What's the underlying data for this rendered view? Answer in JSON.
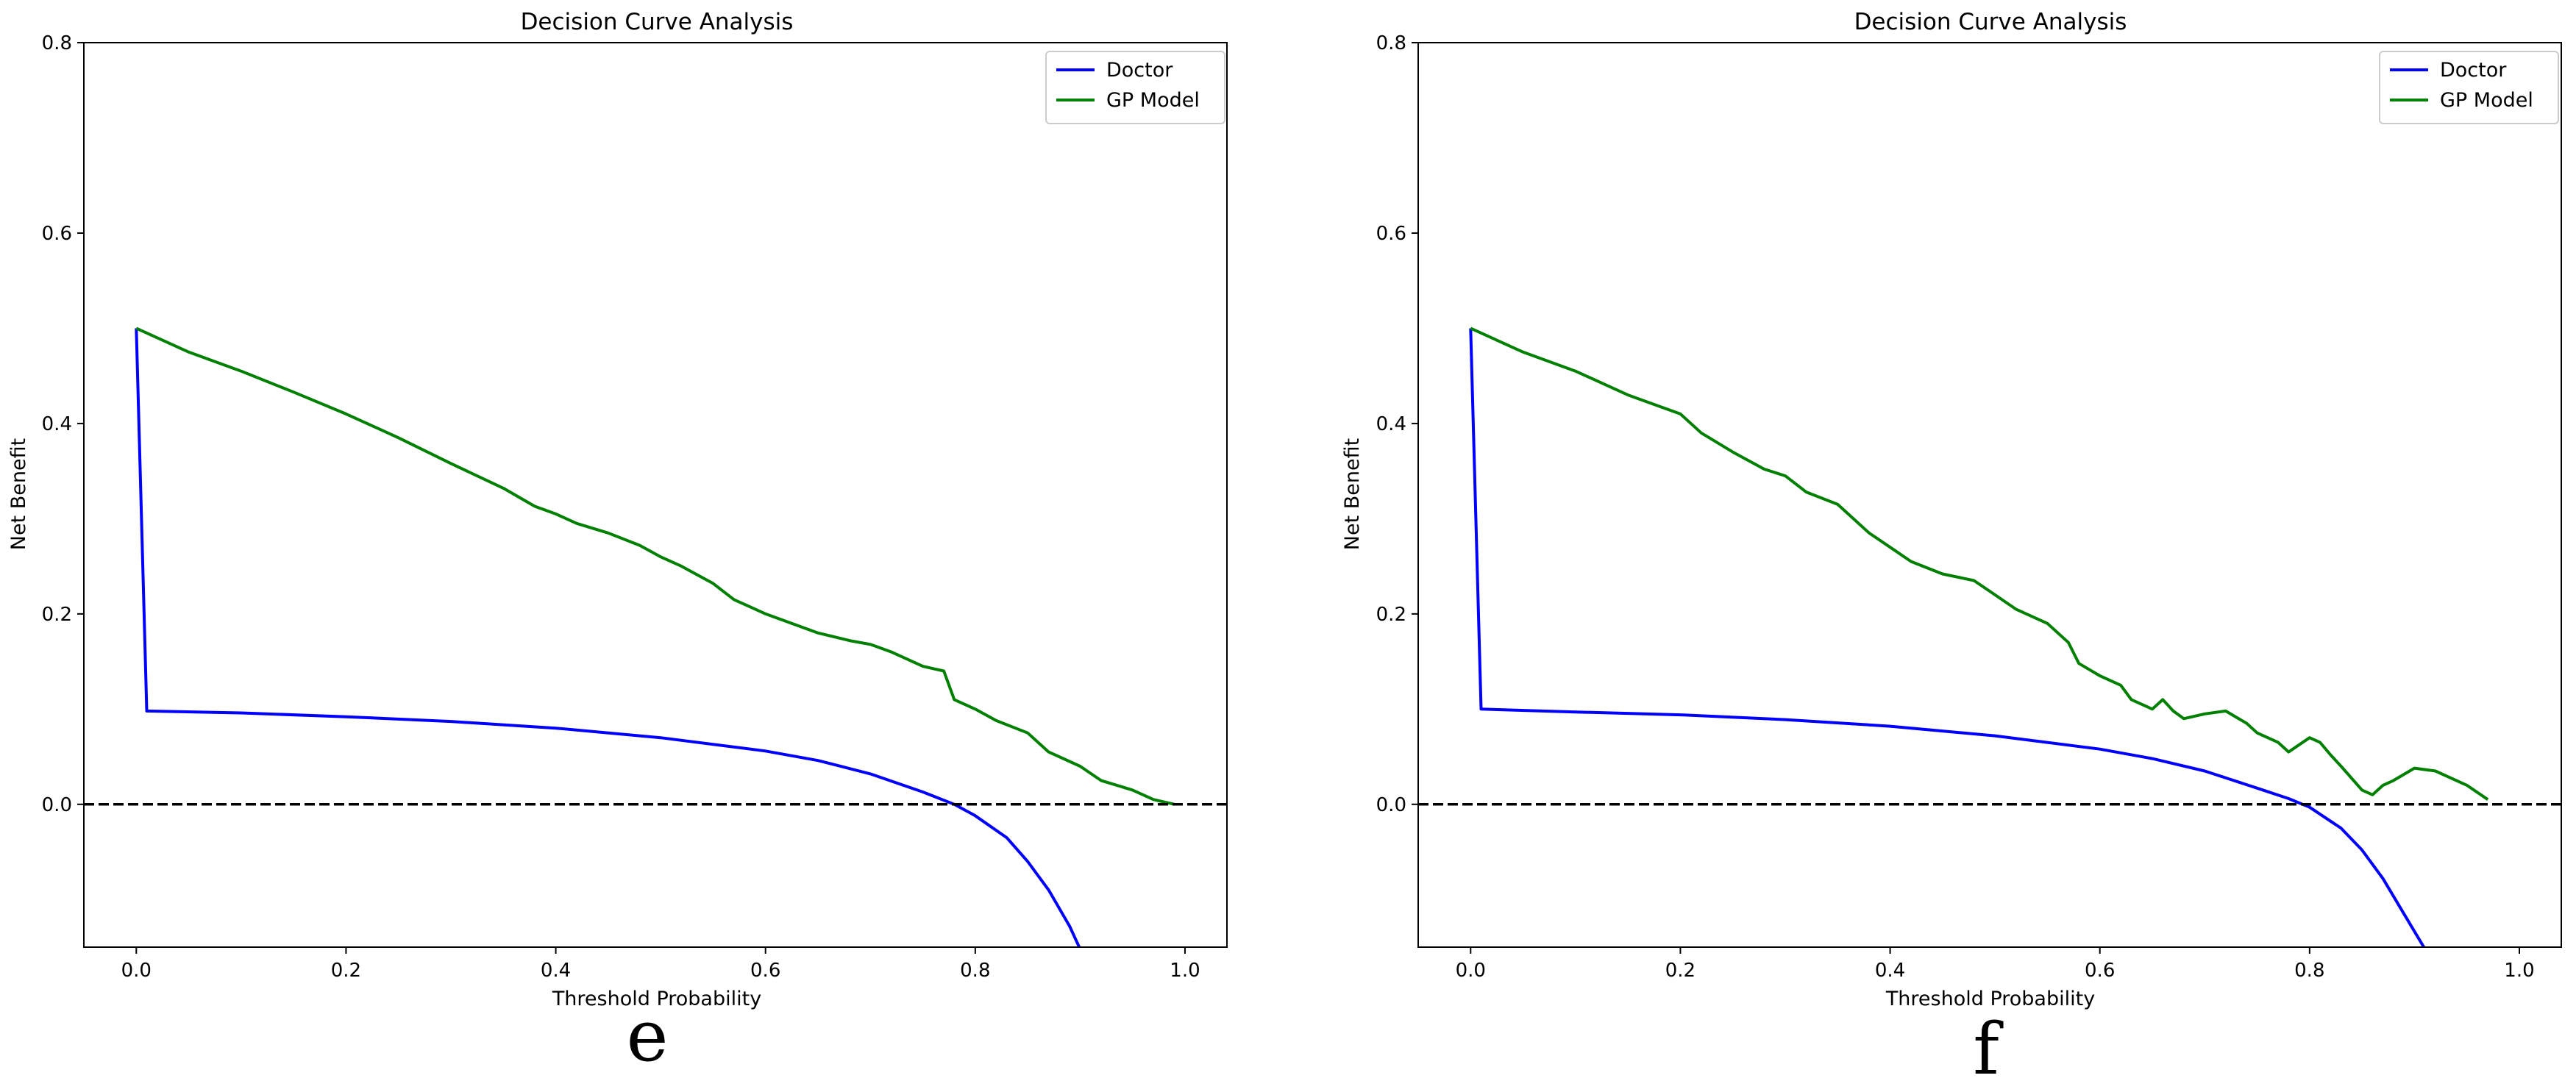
{
  "chart_data": [
    {
      "type": "line",
      "panel_label": "e",
      "title": "Decision Curve Analysis",
      "xlabel": "Threshold Probability",
      "ylabel": "Net Benefit",
      "xlim": [
        -0.05,
        1.04
      ],
      "ylim": [
        -0.15,
        0.8
      ],
      "xticks": [
        "0.0",
        "0.2",
        "0.4",
        "0.6",
        "0.8",
        "1.0"
      ],
      "yticks": [
        "0.0",
        "0.2",
        "0.4",
        "0.6",
        "0.8"
      ],
      "grid": false,
      "legend_position": "upper-right",
      "reference_line": {
        "y": 0,
        "style": "dashed",
        "color": "#000000"
      },
      "series": [
        {
          "name": "Doctor",
          "color": "#0000ff",
          "x": [
            0.0,
            0.01,
            0.1,
            0.2,
            0.3,
            0.4,
            0.5,
            0.6,
            0.65,
            0.7,
            0.75,
            0.78,
            0.8,
            0.83,
            0.85,
            0.87,
            0.89,
            0.9
          ],
          "y": [
            0.5,
            0.098,
            0.096,
            0.092,
            0.087,
            0.08,
            0.07,
            0.056,
            0.046,
            0.032,
            0.013,
            0.0,
            -0.012,
            -0.035,
            -0.06,
            -0.09,
            -0.128,
            -0.152
          ]
        },
        {
          "name": "GP Model",
          "color": "#008000",
          "x": [
            0.0,
            0.05,
            0.1,
            0.15,
            0.2,
            0.25,
            0.3,
            0.35,
            0.38,
            0.4,
            0.42,
            0.45,
            0.48,
            0.5,
            0.52,
            0.55,
            0.57,
            0.6,
            0.63,
            0.65,
            0.68,
            0.7,
            0.72,
            0.75,
            0.77,
            0.78,
            0.8,
            0.82,
            0.85,
            0.87,
            0.9,
            0.92,
            0.95,
            0.97,
            0.99
          ],
          "y": [
            0.5,
            0.475,
            0.455,
            0.433,
            0.41,
            0.385,
            0.358,
            0.332,
            0.313,
            0.305,
            0.295,
            0.285,
            0.272,
            0.26,
            0.25,
            0.232,
            0.215,
            0.2,
            0.188,
            0.18,
            0.172,
            0.168,
            0.16,
            0.145,
            0.14,
            0.11,
            0.1,
            0.088,
            0.075,
            0.055,
            0.04,
            0.025,
            0.015,
            0.005,
            0.0
          ]
        }
      ]
    },
    {
      "type": "line",
      "panel_label": "f",
      "title": "Decision Curve Analysis",
      "xlabel": "Threshold Probability",
      "ylabel": "Net Benefit",
      "xlim": [
        -0.05,
        1.04
      ],
      "ylim": [
        -0.15,
        0.8
      ],
      "xticks": [
        "0.0",
        "0.2",
        "0.4",
        "0.6",
        "0.8",
        "1.0"
      ],
      "yticks": [
        "0.0",
        "0.2",
        "0.4",
        "0.6",
        "0.8"
      ],
      "grid": false,
      "legend_position": "upper-right",
      "reference_line": {
        "y": 0,
        "style": "dashed",
        "color": "#000000"
      },
      "series": [
        {
          "name": "Doctor",
          "color": "#0000ff",
          "x": [
            0.0,
            0.01,
            0.1,
            0.2,
            0.3,
            0.4,
            0.5,
            0.6,
            0.65,
            0.7,
            0.75,
            0.78,
            0.8,
            0.83,
            0.85,
            0.87,
            0.89,
            0.91
          ],
          "y": [
            0.5,
            0.1,
            0.097,
            0.094,
            0.089,
            0.082,
            0.072,
            0.058,
            0.048,
            0.035,
            0.017,
            0.006,
            -0.003,
            -0.025,
            -0.048,
            -0.078,
            -0.115,
            -0.152
          ]
        },
        {
          "name": "GP Model",
          "color": "#008000",
          "x": [
            0.0,
            0.05,
            0.1,
            0.15,
            0.2,
            0.22,
            0.25,
            0.28,
            0.3,
            0.32,
            0.35,
            0.38,
            0.4,
            0.42,
            0.45,
            0.48,
            0.5,
            0.52,
            0.55,
            0.57,
            0.58,
            0.6,
            0.62,
            0.63,
            0.65,
            0.66,
            0.67,
            0.68,
            0.7,
            0.72,
            0.74,
            0.75,
            0.77,
            0.78,
            0.8,
            0.81,
            0.82,
            0.83,
            0.85,
            0.86,
            0.87,
            0.88,
            0.9,
            0.92,
            0.95,
            0.97
          ],
          "y": [
            0.5,
            0.475,
            0.455,
            0.43,
            0.41,
            0.39,
            0.37,
            0.352,
            0.345,
            0.328,
            0.315,
            0.285,
            0.27,
            0.255,
            0.242,
            0.235,
            0.22,
            0.205,
            0.19,
            0.17,
            0.148,
            0.135,
            0.125,
            0.11,
            0.1,
            0.11,
            0.098,
            0.09,
            0.095,
            0.098,
            0.085,
            0.075,
            0.065,
            0.055,
            0.07,
            0.065,
            0.052,
            0.04,
            0.015,
            0.01,
            0.02,
            0.025,
            0.038,
            0.035,
            0.02,
            0.005
          ]
        }
      ]
    }
  ]
}
